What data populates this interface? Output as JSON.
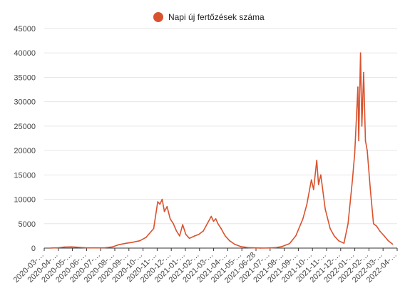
{
  "chart_data": {
    "type": "line",
    "title": "",
    "xlabel": "",
    "ylabel": "",
    "ylim": [
      0,
      45000
    ],
    "yticks": [
      0,
      5000,
      10000,
      15000,
      20000,
      25000,
      30000,
      35000,
      40000,
      45000
    ],
    "grid": true,
    "legend_position": "top",
    "x_tick_labels": [
      "2020-03-…",
      "2020-04-…",
      "2020-05-…",
      "2020-06-…",
      "2020-07-…",
      "2020-08-…",
      "2020-09-…",
      "2020-10-…",
      "2020-11-…",
      "2020-12-…",
      "2021-01-…",
      "2021-02-…",
      "2021-03-…",
      "2021-04-…",
      "2021-05-…",
      "2021-06-28",
      "2021-07-…",
      "2021-08-…",
      "2021-09-…",
      "2021-10-…",
      "2021-11-…",
      "2021-12-…",
      "2022-01-…",
      "2022-02-…",
      "2022-03-…",
      "2022-04-…"
    ],
    "series": [
      {
        "name": "Napi új fertőzések száma",
        "color": "#d9522e",
        "points": [
          [
            "2020-03-15",
            10
          ],
          [
            "2020-04-01",
            80
          ],
          [
            "2020-04-15",
            200
          ],
          [
            "2020-05-01",
            250
          ],
          [
            "2020-05-15",
            180
          ],
          [
            "2020-06-01",
            60
          ],
          [
            "2020-06-15",
            40
          ],
          [
            "2020-07-01",
            50
          ],
          [
            "2020-07-15",
            80
          ],
          [
            "2020-08-01",
            250
          ],
          [
            "2020-08-15",
            700
          ],
          [
            "2020-09-01",
            1000
          ],
          [
            "2020-09-15",
            1200
          ],
          [
            "2020-10-01",
            1500
          ],
          [
            "2020-10-15",
            2200
          ],
          [
            "2020-11-01",
            4000
          ],
          [
            "2020-11-10",
            9500
          ],
          [
            "2020-11-15",
            9000
          ],
          [
            "2020-11-20",
            10000
          ],
          [
            "2020-11-25",
            7500
          ],
          [
            "2020-12-01",
            8500
          ],
          [
            "2020-12-08",
            6000
          ],
          [
            "2020-12-15",
            5000
          ],
          [
            "2020-12-22",
            3500
          ],
          [
            "2020-12-29",
            2500
          ],
          [
            "2021-01-05",
            4800
          ],
          [
            "2021-01-12",
            2800
          ],
          [
            "2021-01-20",
            2000
          ],
          [
            "2021-02-01",
            2500
          ],
          [
            "2021-02-10",
            2800
          ],
          [
            "2021-02-20",
            3500
          ],
          [
            "2021-03-01",
            5000
          ],
          [
            "2021-03-10",
            6500
          ],
          [
            "2021-03-15",
            5500
          ],
          [
            "2021-03-20",
            6000
          ],
          [
            "2021-03-25",
            5000
          ],
          [
            "2021-04-01",
            4000
          ],
          [
            "2021-04-10",
            2500
          ],
          [
            "2021-04-20",
            1500
          ],
          [
            "2021-05-01",
            800
          ],
          [
            "2021-05-15",
            300
          ],
          [
            "2021-06-01",
            100
          ],
          [
            "2021-06-15",
            40
          ],
          [
            "2021-06-28",
            20
          ],
          [
            "2021-07-15",
            30
          ],
          [
            "2021-08-01",
            100
          ],
          [
            "2021-08-15",
            300
          ],
          [
            "2021-09-01",
            900
          ],
          [
            "2021-09-15",
            2500
          ],
          [
            "2021-10-01",
            6000
          ],
          [
            "2021-10-10",
            9000
          ],
          [
            "2021-10-20",
            14000
          ],
          [
            "2021-10-25",
            12000
          ],
          [
            "2021-11-01",
            18000
          ],
          [
            "2021-11-05",
            13000
          ],
          [
            "2021-11-10",
            15000
          ],
          [
            "2021-11-20",
            8000
          ],
          [
            "2021-12-01",
            4000
          ],
          [
            "2021-12-10",
            2500
          ],
          [
            "2021-12-20",
            1500
          ],
          [
            "2022-01-01",
            1000
          ],
          [
            "2022-01-10",
            5000
          ],
          [
            "2022-01-20",
            14000
          ],
          [
            "2022-01-25",
            19500
          ],
          [
            "2022-02-01",
            33000
          ],
          [
            "2022-02-03",
            22000
          ],
          [
            "2022-02-07",
            40000
          ],
          [
            "2022-02-10",
            25000
          ],
          [
            "2022-02-14",
            36000
          ],
          [
            "2022-02-18",
            22000
          ],
          [
            "2022-02-22",
            20000
          ],
          [
            "2022-03-01",
            12000
          ],
          [
            "2022-03-08",
            5000
          ],
          [
            "2022-03-15",
            4500
          ],
          [
            "2022-03-22",
            3500
          ],
          [
            "2022-04-01",
            2500
          ],
          [
            "2022-04-10",
            1500
          ],
          [
            "2022-04-20",
            800
          ]
        ]
      }
    ]
  }
}
